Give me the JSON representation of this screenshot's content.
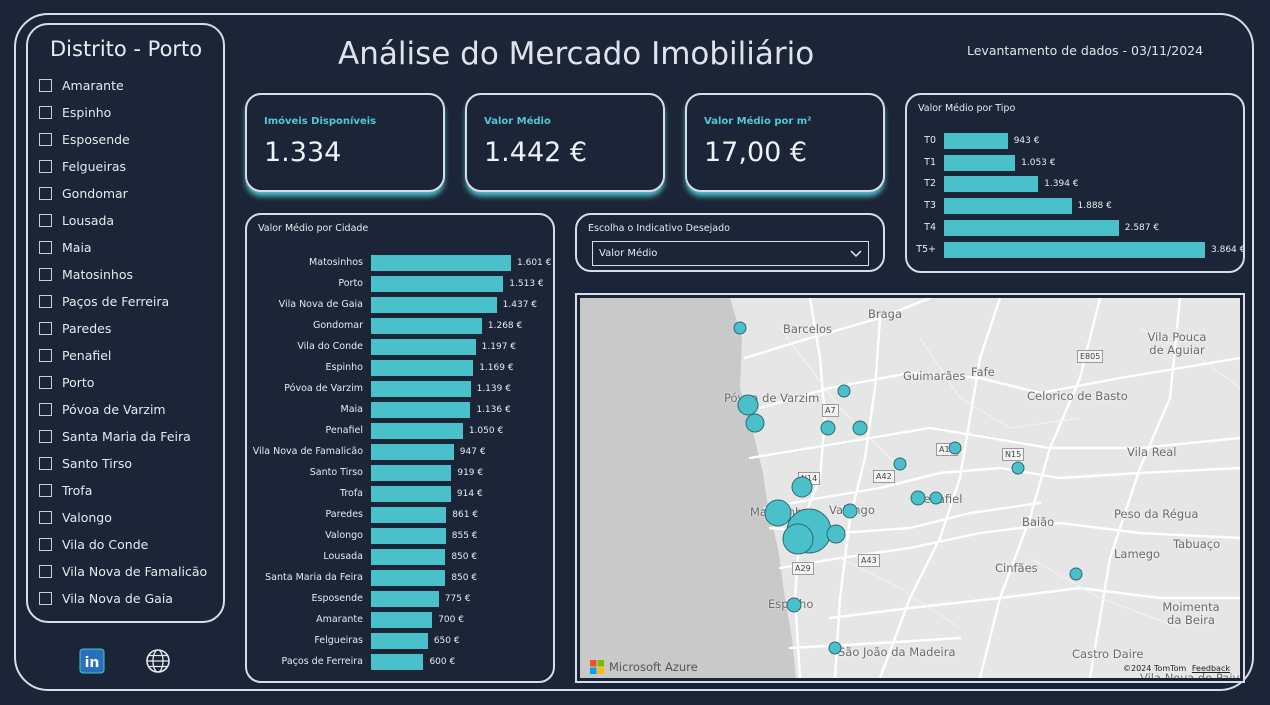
{
  "filter": {
    "title": "Distrito - Porto",
    "items": [
      "Amarante",
      "Espinho",
      "Esposende",
      "Felgueiras",
      "Gondomar",
      "Lousada",
      "Maia",
      "Matosinhos",
      "Paços de Ferreira",
      "Paredes",
      "Penafiel",
      "Porto",
      "Póvoa de Varzim",
      "Santa Maria da Feira",
      "Santo Tirso",
      "Trofa",
      "Valongo",
      "Vila do Conde",
      "Vila Nova de Famalicão",
      "Vila Nova de Gaia"
    ]
  },
  "header": {
    "title": "Análise do Mercado Imobiliário",
    "date": "Levantamento de dados - 03/11/2024"
  },
  "kpis": [
    {
      "label": "Imóveis Disponíveis",
      "value": "1.334"
    },
    {
      "label": "Valor Médio",
      "value": "1.442 €"
    },
    {
      "label": "Valor Médio por m²",
      "value": "17,00 €"
    }
  ],
  "indicator": {
    "title": "Escolha o Indicativo Desejado",
    "selected": "Valor Médio"
  },
  "colors": {
    "accent": "#4ac0cb",
    "background": "#1b2537",
    "border": "#d7dde6"
  },
  "chart_data": [
    {
      "type": "bar",
      "orientation": "horizontal",
      "title": "Valor Médio por Cidade",
      "categories": [
        "Matosinhos",
        "Porto",
        "Vila Nova de Gaia",
        "Gondomar",
        "Vila do Conde",
        "Espinho",
        "Póvoa de Varzim",
        "Maia",
        "Penafiel",
        "Vila Nova de Famalicão",
        "Santo Tirso",
        "Trofa",
        "Paredes",
        "Valongo",
        "Lousada",
        "Santa Maria da Feira",
        "Esposende",
        "Amarante",
        "Felgueiras",
        "Paços de Ferreira"
      ],
      "values": [
        1601,
        1513,
        1437,
        1268,
        1197,
        1169,
        1139,
        1136,
        1050,
        947,
        919,
        914,
        861,
        855,
        850,
        850,
        775,
        700,
        650,
        600
      ],
      "value_labels": [
        "1.601 €",
        "1.513 €",
        "1.437 €",
        "1.268 €",
        "1.197 €",
        "1.169 €",
        "1.139 €",
        "1.136 €",
        "1.050 €",
        "947 €",
        "919 €",
        "914 €",
        "861 €",
        "855 €",
        "850 €",
        "850 €",
        "775 €",
        "700 €",
        "650 €",
        "600 €"
      ],
      "xlabel": "",
      "ylabel": ""
    },
    {
      "type": "bar",
      "orientation": "horizontal",
      "title": "Valor Médio por Tipo",
      "categories": [
        "T0",
        "T1",
        "T2",
        "T3",
        "T4",
        "T5+"
      ],
      "values": [
        943,
        1053,
        1394,
        1888,
        2587,
        3864
      ],
      "value_labels": [
        "943 €",
        "1.053 €",
        "1.394 €",
        "1.888 €",
        "2.587 €",
        "3.864 €"
      ],
      "xlabel": "",
      "ylabel": ""
    }
  ],
  "map": {
    "places": [
      "Barcelos",
      "Braga",
      "Vila Pouca de Aguiar",
      "Guimarães",
      "Fafe",
      "Póvoa de Varzim",
      "Celorico de Basto",
      "Vila Real",
      "Valongo",
      "Penafiel",
      "Matosinhos",
      "Baião",
      "Peso da Régua",
      "Lamego",
      "Tabuaço",
      "Cinfães",
      "Espinho",
      "Moimenta da Beira",
      "São João da Madeira",
      "Castro Daire",
      "Vila Nova de Paiva"
    ],
    "roads": [
      "A7",
      "E805",
      "A11",
      "N15",
      "N14",
      "A42",
      "A43",
      "A29"
    ],
    "provider": "Microsoft Azure",
    "copyright": "©2024 TomTom",
    "feedback": "Feedback",
    "bubble_color": "#4ac0cb"
  },
  "social": {
    "linkedin_icon": "linkedin-icon",
    "web_icon": "globe-icon"
  }
}
